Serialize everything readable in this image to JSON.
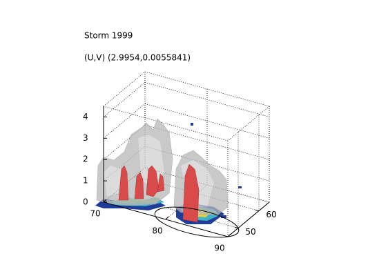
{
  "chart_data": {
    "type": "isosurface",
    "title": "Storm 1999",
    "subtitle": "(U,V) (2.9954,0.0055841)",
    "xlim": [
      70,
      90
    ],
    "xticks": [
      70,
      80,
      90
    ],
    "ylim": [
      45,
      65
    ],
    "yticks": [
      50,
      60
    ],
    "zlim": [
      0,
      4.5
    ],
    "zticks": [
      0,
      1,
      2,
      3,
      4
    ],
    "grid": true
  }
}
